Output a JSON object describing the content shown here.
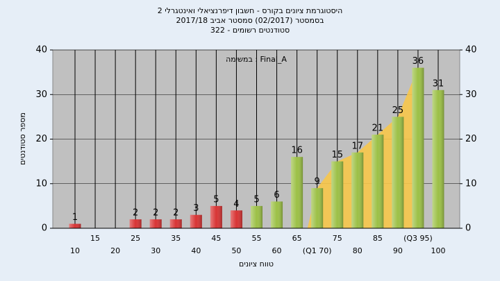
{
  "chart_data": {
    "type": "bar",
    "title": "היסטוגרמת ציונים בקורס - חשבון דיפרנציאלי ואינטגרלי 2",
    "subtitle": "בסמסטר  (02/2017)  סמסטר אביב 2017/18",
    "subtitle2": "סטודנטים רשומים - 322",
    "annotation": "במשימה : Final_A",
    "x_label": "טווח ציונים",
    "y_label": "מספר סטודנטים",
    "categories": [
      "10",
      "15",
      "20",
      "25",
      "30",
      "35",
      "40",
      "45",
      "50",
      "55",
      "60",
      "65",
      "(Q1 70)",
      "75",
      "80",
      "85",
      "90",
      "(Q3 95)",
      "100"
    ],
    "values": [
      1,
      0,
      0,
      2,
      2,
      2,
      3,
      5,
      4,
      5,
      6,
      16,
      9,
      15,
      17,
      21,
      25,
      36,
      31
    ],
    "colors": [
      "#d83434",
      "#d83434",
      "#d83434",
      "#d83434",
      "#d83434",
      "#d83434",
      "#d83434",
      "#d83434",
      "#d83434",
      "#9cc046",
      "#9cc046",
      "#9cc046",
      "#9cc046",
      "#9cc046",
      "#9cc046",
      "#9cc046",
      "#9cc046",
      "#9cc046",
      "#9cc046"
    ],
    "ylim": [
      0,
      40
    ],
    "yticks": [
      0,
      10,
      20,
      30,
      40
    ],
    "y2lim": [
      0,
      40
    ],
    "y2ticks": [
      0,
      10,
      20,
      30,
      40
    ],
    "grid": true
  }
}
